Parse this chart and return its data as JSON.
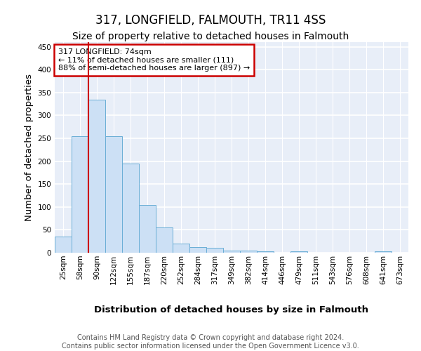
{
  "title": "317, LONGFIELD, FALMOUTH, TR11 4SS",
  "subtitle": "Size of property relative to detached houses in Falmouth",
  "xlabel": "Distribution of detached houses by size in Falmouth",
  "ylabel": "Number of detached properties",
  "footer_line1": "Contains HM Land Registry data © Crown copyright and database right 2024.",
  "footer_line2": "Contains public sector information licensed under the Open Government Licence v3.0.",
  "categories": [
    "25sqm",
    "58sqm",
    "90sqm",
    "122sqm",
    "155sqm",
    "187sqm",
    "220sqm",
    "252sqm",
    "284sqm",
    "317sqm",
    "349sqm",
    "382sqm",
    "414sqm",
    "446sqm",
    "479sqm",
    "511sqm",
    "543sqm",
    "576sqm",
    "608sqm",
    "641sqm",
    "673sqm"
  ],
  "values": [
    35,
    255,
    335,
    255,
    195,
    105,
    55,
    20,
    12,
    10,
    5,
    5,
    3,
    0,
    3,
    0,
    0,
    0,
    0,
    3,
    0
  ],
  "bar_color": "#cce0f5",
  "bar_edge_color": "#6aaed6",
  "redline_x": 1.5,
  "ylim": [
    0,
    460
  ],
  "yticks": [
    0,
    50,
    100,
    150,
    200,
    250,
    300,
    350,
    400,
    450
  ],
  "annotation_text": "317 LONGFIELD: 74sqm\n← 11% of detached houses are smaller (111)\n88% of semi-detached houses are larger (897) →",
  "annotation_box_color": "#ffffff",
  "annotation_box_edge": "#cc0000",
  "bg_color": "#e8eef8",
  "grid_color": "#ffffff",
  "title_fontsize": 12,
  "subtitle_fontsize": 10,
  "axis_label_fontsize": 9.5,
  "tick_fontsize": 7.5,
  "footer_fontsize": 7,
  "fig_bg": "#ffffff"
}
